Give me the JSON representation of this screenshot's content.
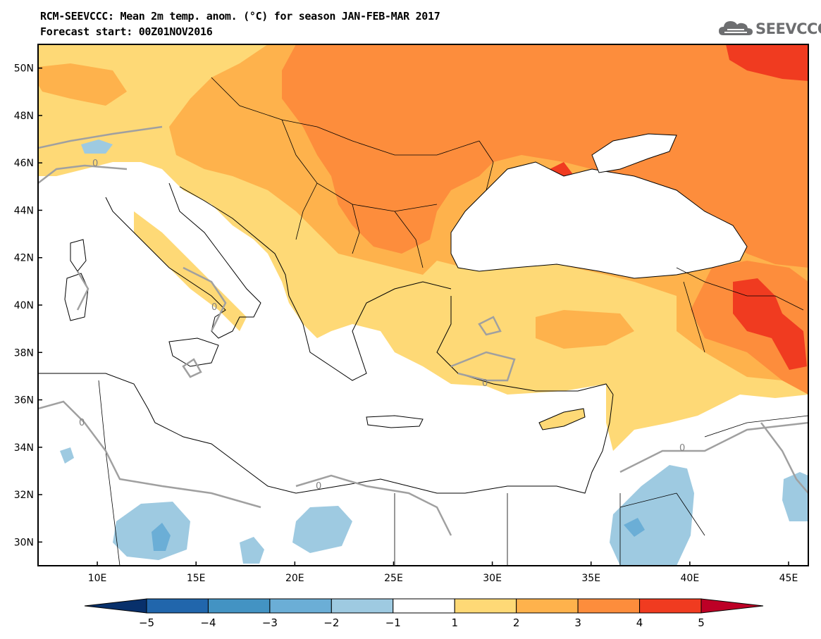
{
  "title": "RCM-SEEVCCC: Mean 2m temp. anom. (°C) for season JAN-FEB-MAR 2017",
  "subtitle": "Forecast start: 00Z01NOV2016",
  "logo_text": "SEEVCCC",
  "map": {
    "extent": {
      "lon_min": 7,
      "lon_max": 46,
      "lat_min": 29,
      "lat_max": 51
    },
    "lat_ticks": [
      {
        "value": 30,
        "label": "30N"
      },
      {
        "value": 32,
        "label": "32N"
      },
      {
        "value": 34,
        "label": "34N"
      },
      {
        "value": 36,
        "label": "36N"
      },
      {
        "value": 38,
        "label": "38N"
      },
      {
        "value": 40,
        "label": "40N"
      },
      {
        "value": 42,
        "label": "42N"
      },
      {
        "value": 44,
        "label": "44N"
      },
      {
        "value": 46,
        "label": "46N"
      },
      {
        "value": 48,
        "label": "48N"
      },
      {
        "value": 50,
        "label": "50N"
      }
    ],
    "lon_ticks": [
      {
        "value": 10,
        "label": "10E"
      },
      {
        "value": 15,
        "label": "15E"
      },
      {
        "value": 20,
        "label": "20E"
      },
      {
        "value": 25,
        "label": "25E"
      },
      {
        "value": 30,
        "label": "30E"
      },
      {
        "value": 35,
        "label": "35E"
      },
      {
        "value": 40,
        "label": "40E"
      },
      {
        "value": 45,
        "label": "45E"
      }
    ],
    "zero_contour_label": "0"
  },
  "colorbar": {
    "levels": [
      "−5",
      "−4",
      "−3",
      "−2",
      "−1",
      "1",
      "2",
      "3",
      "4",
      "5"
    ],
    "colors": [
      "#08306b",
      "#2166ac",
      "#4393c3",
      "#6baed6",
      "#9ecae1",
      "#ffffff",
      "#fed976",
      "#feb24c",
      "#fd8d3c",
      "#f03b20",
      "#bd0026"
    ]
  },
  "colors": {
    "anom_1_2": "#fed976",
    "anom_2_3": "#feb24c",
    "anom_3_4": "#fd8d3c",
    "anom_4_5": "#f03b20",
    "anom_m1_m2": "#9ecae1",
    "anom_m2_m3": "#6baed6",
    "contour_zero": "#a0a0a0"
  }
}
